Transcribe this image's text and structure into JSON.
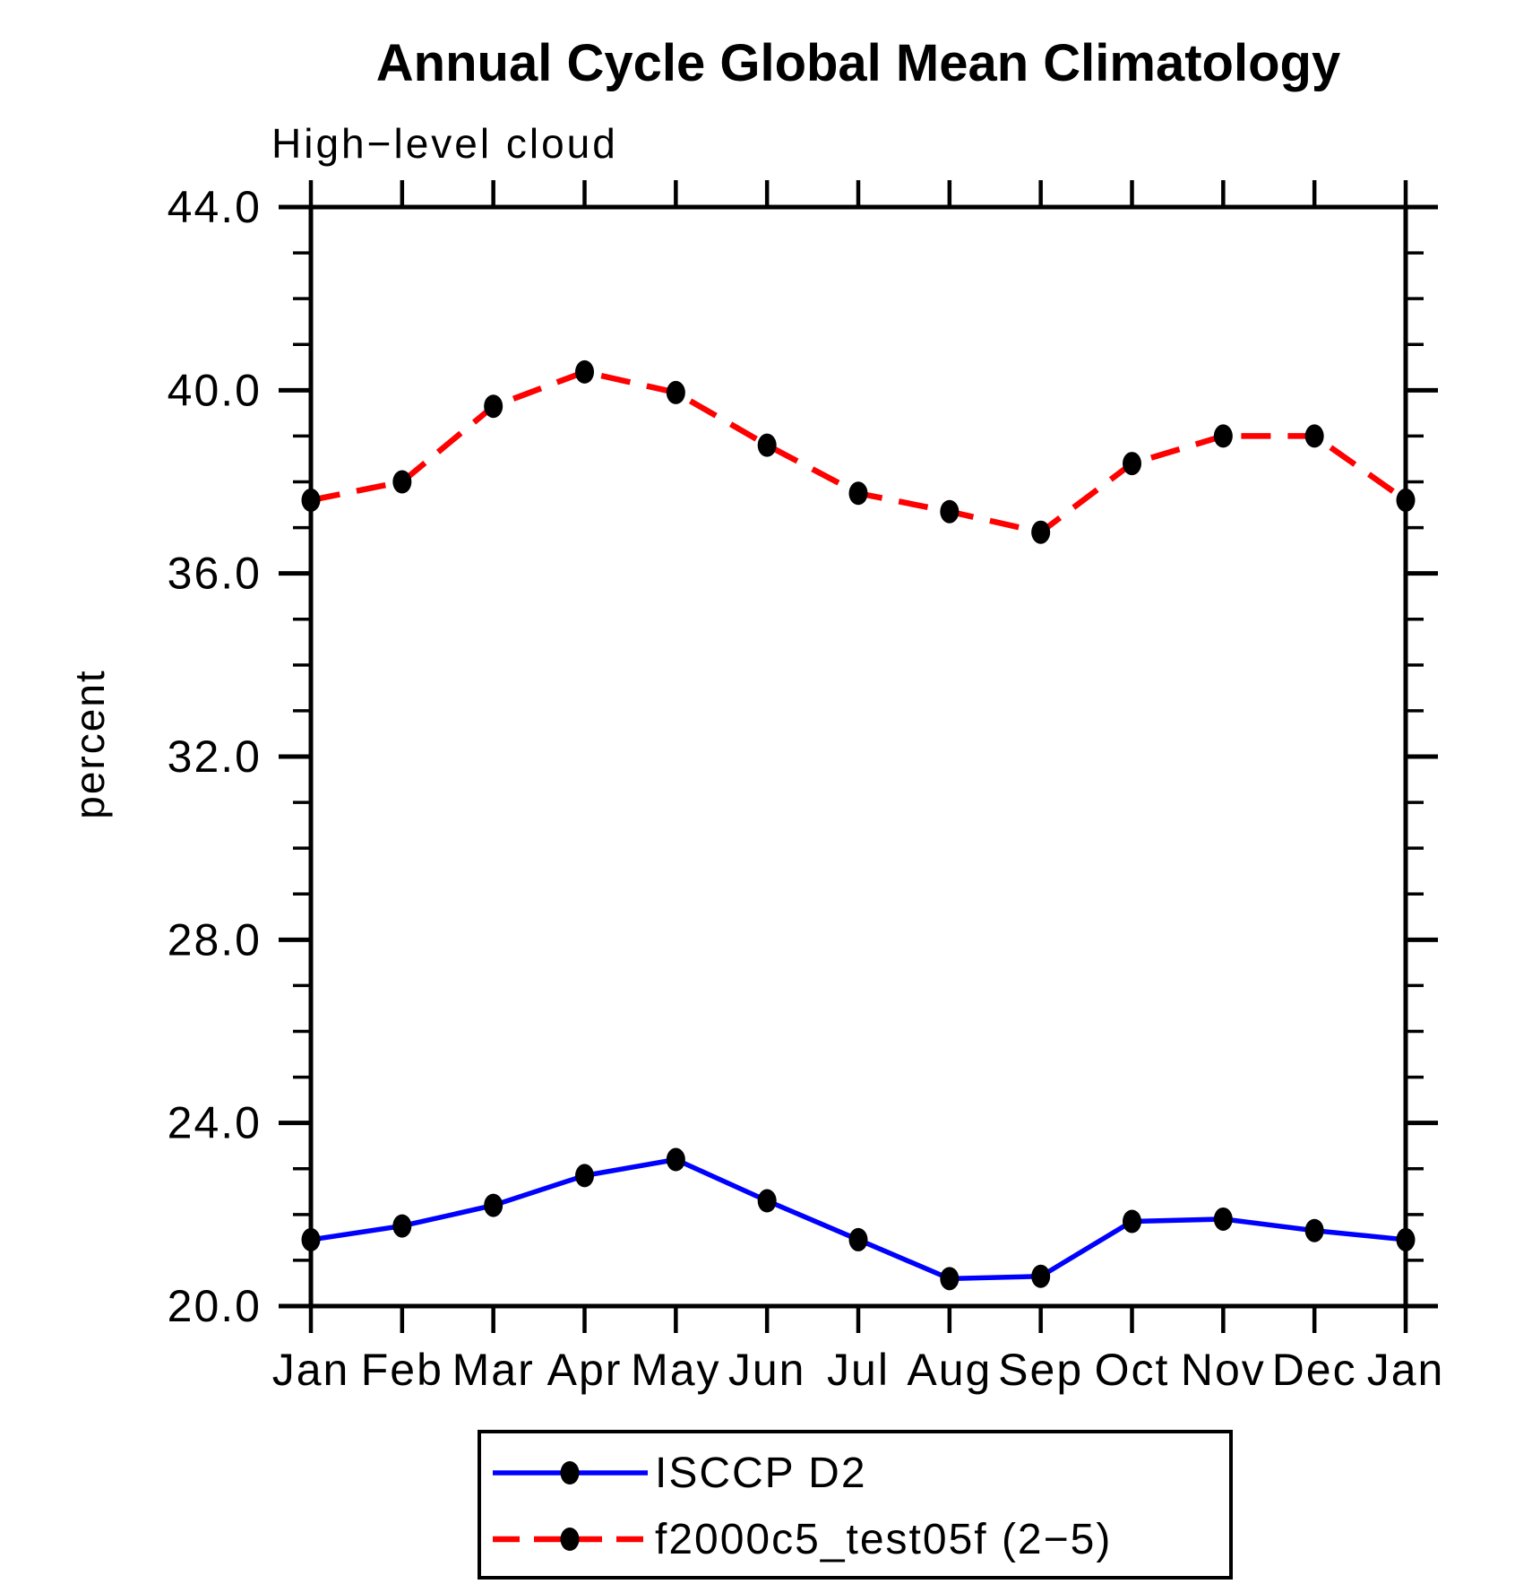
{
  "page": {
    "background_color": "#ffffff"
  },
  "chart_data": {
    "type": "line",
    "title": "Annual Cycle Global Mean Climatology",
    "subtitle": "High−level cloud",
    "ylabel": "percent",
    "xlabel": "",
    "categories": [
      "Jan",
      "Feb",
      "Mar",
      "Apr",
      "May",
      "Jun",
      "Jul",
      "Aug",
      "Sep",
      "Oct",
      "Nov",
      "Dec",
      "Jan"
    ],
    "ylim": [
      20.0,
      44.0
    ],
    "y_major_tick_step": 4.0,
    "y_minor_tick_step": 1.0,
    "y_major_tick_labels": [
      "20.0",
      "24.0",
      "28.0",
      "32.0",
      "36.0",
      "40.0",
      "44.0"
    ],
    "grid": false,
    "legend_position": "bottom-center",
    "axis_color": "#000000",
    "text_color": "#000000",
    "marker_color": "#000000",
    "series": [
      {
        "name": "ISCCP D2",
        "color": "#0000ff",
        "line_style": "solid",
        "marker": "filled-circle",
        "values": [
          21.45,
          21.75,
          22.2,
          22.85,
          23.2,
          22.3,
          21.45,
          20.6,
          20.65,
          21.85,
          21.9,
          21.65,
          21.45
        ]
      },
      {
        "name": "f2000c5_test05f (2−5)",
        "color": "#ff0000",
        "line_style": "dashed",
        "marker": "filled-circle",
        "values": [
          37.6,
          38.0,
          39.65,
          40.4,
          39.95,
          38.8,
          37.75,
          37.35,
          36.9,
          38.4,
          39.0,
          39.0,
          37.6
        ]
      }
    ]
  }
}
